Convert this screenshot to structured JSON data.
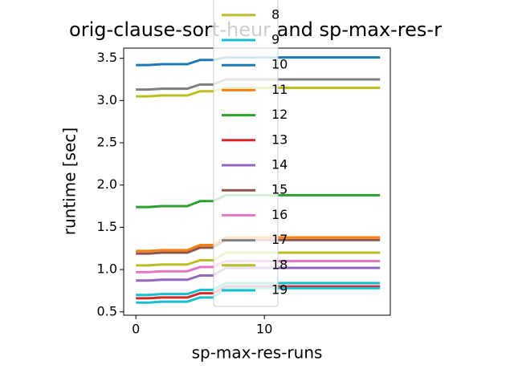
{
  "chart_data": {
    "type": "line",
    "title": "orig-clause-sort-heur and sp-max-res-r",
    "x_label": "sp-max-res-runs",
    "y_label": "runtime [sec]",
    "x": [
      0,
      1,
      2,
      3,
      4,
      5,
      6,
      7,
      8,
      9,
      10,
      11,
      12,
      13,
      14,
      15,
      16,
      17,
      18,
      19
    ],
    "xlim": [
      -0.95,
      19.8
    ],
    "xticks": [
      0,
      10
    ],
    "ylim": [
      0.46,
      3.62
    ],
    "yticks": [
      0.5,
      {
        "value": 1,
        "label": "1.0"
      },
      1.5,
      {
        "value": 2,
        "label": "2.0"
      },
      2.5,
      {
        "value": 3,
        "label": "3.0"
      },
      3.5
    ],
    "series": [
      {
        "name": "8",
        "color": "#bcbd22",
        "values": [
          1.05,
          1.05,
          1.06,
          1.06,
          1.06,
          1.11,
          1.11,
          1.2,
          1.2,
          1.2,
          1.2,
          1.2,
          1.2,
          1.2,
          1.2,
          1.2,
          1.2,
          1.2,
          1.2,
          1.2
        ]
      },
      {
        "name": "9",
        "color": "#17becf",
        "values": [
          0.7,
          0.7,
          0.71,
          0.71,
          0.71,
          0.76,
          0.76,
          0.84,
          0.84,
          0.84,
          0.84,
          0.84,
          0.84,
          0.84,
          0.84,
          0.84,
          0.84,
          0.84,
          0.84,
          0.84
        ]
      },
      {
        "name": "10",
        "color": "#1f77b4",
        "values": [
          3.42,
          3.42,
          3.43,
          3.43,
          3.43,
          3.48,
          3.48,
          3.51,
          3.51,
          3.51,
          3.51,
          3.51,
          3.51,
          3.51,
          3.51,
          3.51,
          3.51,
          3.51,
          3.51,
          3.51
        ]
      },
      {
        "name": "11",
        "color": "#ff7f0e",
        "values": [
          1.22,
          1.22,
          1.23,
          1.23,
          1.23,
          1.29,
          1.29,
          1.38,
          1.38,
          1.38,
          1.38,
          1.38,
          1.38,
          1.38,
          1.38,
          1.38,
          1.38,
          1.38,
          1.38,
          1.38
        ]
      },
      {
        "name": "12",
        "color": "#2ca02c",
        "values": [
          1.74,
          1.74,
          1.75,
          1.75,
          1.75,
          1.81,
          1.81,
          1.88,
          1.88,
          1.88,
          1.88,
          1.88,
          1.88,
          1.88,
          1.88,
          1.88,
          1.88,
          1.88,
          1.88,
          1.88
        ]
      },
      {
        "name": "13",
        "color": "#d62728",
        "values": [
          0.66,
          0.66,
          0.67,
          0.67,
          0.67,
          0.72,
          0.72,
          0.8,
          0.8,
          0.8,
          0.8,
          0.8,
          0.8,
          0.8,
          0.8,
          0.8,
          0.8,
          0.8,
          0.8,
          0.8
        ]
      },
      {
        "name": "14",
        "color": "#9467bd",
        "values": [
          0.87,
          0.87,
          0.88,
          0.88,
          0.88,
          0.93,
          0.93,
          1.02,
          1.02,
          1.02,
          1.02,
          1.02,
          1.02,
          1.02,
          1.02,
          1.02,
          1.02,
          1.02,
          1.02,
          1.02
        ]
      },
      {
        "name": "15",
        "color": "#8c564b",
        "values": [
          1.19,
          1.19,
          1.2,
          1.2,
          1.2,
          1.26,
          1.26,
          1.35,
          1.35,
          1.35,
          1.35,
          1.35,
          1.35,
          1.35,
          1.35,
          1.35,
          1.35,
          1.35,
          1.35,
          1.35
        ]
      },
      {
        "name": "16",
        "color": "#e377c2",
        "values": [
          0.97,
          0.97,
          0.98,
          0.98,
          0.98,
          1.03,
          1.03,
          1.1,
          1.1,
          1.1,
          1.1,
          1.1,
          1.1,
          1.1,
          1.1,
          1.1,
          1.1,
          1.1,
          1.1,
          1.1
        ]
      },
      {
        "name": "17",
        "color": "#7f7f7f",
        "values": [
          3.13,
          3.13,
          3.14,
          3.14,
          3.14,
          3.19,
          3.19,
          3.25,
          3.25,
          3.25,
          3.25,
          3.25,
          3.25,
          3.25,
          3.25,
          3.25,
          3.25,
          3.25,
          3.25,
          3.25
        ]
      },
      {
        "name": "18",
        "color": "#bcbd22",
        "values": [
          3.05,
          3.05,
          3.06,
          3.06,
          3.06,
          3.11,
          3.11,
          3.15,
          3.15,
          3.15,
          3.15,
          3.15,
          3.15,
          3.15,
          3.15,
          3.15,
          3.15,
          3.15,
          3.15,
          3.15
        ]
      },
      {
        "name": "19",
        "color": "#17becf",
        "values": [
          0.61,
          0.61,
          0.62,
          0.62,
          0.62,
          0.67,
          0.67,
          0.78,
          0.78,
          0.78,
          0.78,
          0.78,
          0.78,
          0.78,
          0.78,
          0.78,
          0.78,
          0.78,
          0.78,
          0.78
        ]
      }
    ]
  }
}
